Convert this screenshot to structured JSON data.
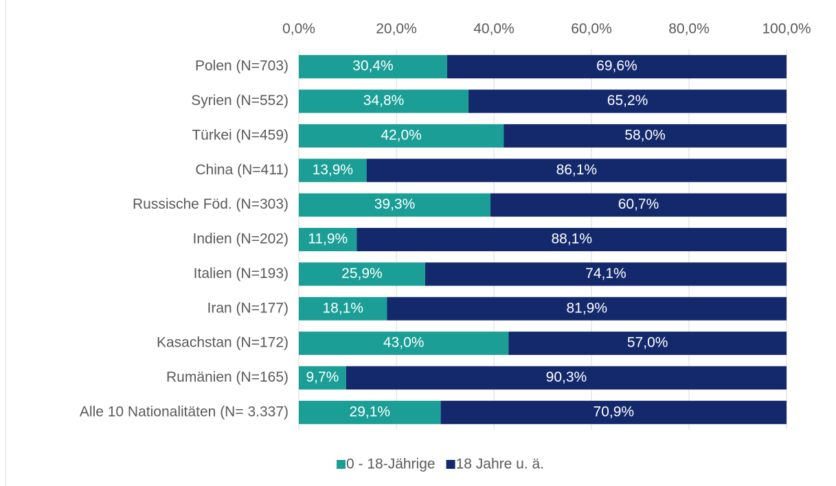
{
  "chart_data": {
    "type": "bar",
    "orientation": "horizontal",
    "stacked": true,
    "categories": [
      "Polen (N=703)",
      "Syrien (N=552)",
      "Türkei (N=459)",
      "China (N=411)",
      "Russische Föd. (N=303)",
      "Indien (N=202)",
      "Italien (N=193)",
      "Iran (N=177)",
      "Kasachstan (N=172)",
      "Rumänien (N=165)",
      "Alle 10 Nationalitäten (N= 3.337)"
    ],
    "series": [
      {
        "name": "0 - 18-Jährige",
        "color": "#1a9e96",
        "values": [
          30.4,
          34.8,
          42.0,
          13.9,
          39.3,
          11.9,
          25.9,
          18.1,
          43.0,
          9.7,
          29.1
        ],
        "value_labels": [
          "30,4%",
          "34,8%",
          "42,0%",
          "13,9%",
          "39,3%",
          "11,9%",
          "25,9%",
          "18,1%",
          "43,0%",
          "9,7%",
          "29,1%"
        ]
      },
      {
        "name": "18 Jahre u. ä.",
        "color": "#13296b",
        "values": [
          69.6,
          65.2,
          58.0,
          86.1,
          60.7,
          88.1,
          74.1,
          81.9,
          57.0,
          90.3,
          70.9
        ],
        "value_labels": [
          "69,6%",
          "65,2%",
          "58,0%",
          "86,1%",
          "60,7%",
          "88,1%",
          "74,1%",
          "81,9%",
          "57,0%",
          "90,3%",
          "70,9%"
        ]
      }
    ],
    "xlim": [
      0,
      100
    ],
    "xticks": [
      {
        "value": 0,
        "label": "0,0%"
      },
      {
        "value": 20,
        "label": "20,0%"
      },
      {
        "value": 40,
        "label": "40,0%"
      },
      {
        "value": 60,
        "label": "60,0%"
      },
      {
        "value": 80,
        "label": "80,0%"
      },
      {
        "value": 100,
        "label": "100,0%"
      }
    ],
    "grid": true,
    "legend": "bottom"
  }
}
